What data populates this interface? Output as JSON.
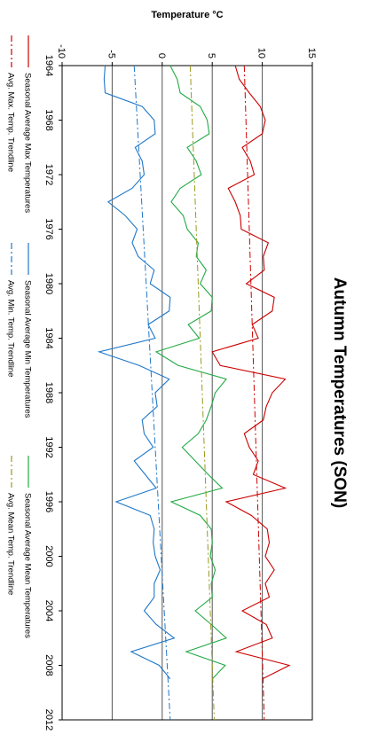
{
  "chart_data": {
    "type": "line",
    "orientation": "rotated-90-clockwise",
    "title": "Autumn Temperatures (SON)",
    "xlabel": "",
    "ylabel": "Temperature °C",
    "xlim": [
      1964,
      2012
    ],
    "ylim": [
      -10,
      15
    ],
    "x_ticks": [
      "1964",
      "1968",
      "1972",
      "1976",
      "1980",
      "1984",
      "1988",
      "1992",
      "1996",
      "2000",
      "2004",
      "2008",
      "2012"
    ],
    "y_ticks": [
      "-10",
      "-5",
      "0",
      "5",
      "10",
      "15"
    ],
    "grid": "horizontal lines at 10, 5, 0, -5",
    "x": [
      1964,
      1965,
      1966,
      1967,
      1968,
      1969,
      1970,
      1971,
      1972,
      1973,
      1974,
      1975,
      1976,
      1977,
      1978,
      1979,
      1980,
      1981,
      1982,
      1983,
      1984,
      1985,
      1986,
      1987,
      1988,
      1989,
      1990,
      1991,
      1992,
      1993,
      1994,
      1995,
      1996,
      1997,
      1998,
      1999,
      2000,
      2001,
      2002,
      2003,
      2004,
      2005,
      2006,
      2007,
      2008,
      2009
    ],
    "series": [
      {
        "name": "Seasonal Average Max Temperatures",
        "color": "#cc0000",
        "style": "solid",
        "values": [
          7.3,
          7.7,
          8.7,
          9.8,
          10.3,
          10.0,
          8.0,
          8.8,
          9.2,
          6.6,
          7.3,
          7.8,
          7.9,
          10.6,
          10.1,
          10.2,
          8.4,
          11.2,
          11.0,
          9.0,
          9.6,
          5.0,
          5.8,
          12.3,
          11.0,
          10.4,
          10.1,
          8.2,
          8.7,
          9.6,
          9.1,
          12.3,
          6.4,
          8.9,
          10.5,
          10.7,
          10.3,
          11.2,
          10.3,
          10.7,
          8.0,
          10.4,
          11.0,
          7.4,
          12.7,
          10.0
        ]
      },
      {
        "name": "Seasonal Average Min Temperatures",
        "color": "#1f77c8",
        "style": "solid",
        "values": [
          -5.7,
          -5.8,
          -5.7,
          -2.0,
          -0.8,
          -0.7,
          -2.7,
          -2.0,
          -1.8,
          -3.0,
          -5.4,
          -3.7,
          -2.5,
          -3.0,
          -2.4,
          -0.8,
          -1.2,
          0.8,
          0.7,
          -1.4,
          -0.7,
          -6.3,
          -2.3,
          0.7,
          -0.7,
          -0.5,
          -2.0,
          -1.8,
          -0.9,
          -2.8,
          -1.7,
          -0.6,
          -4.6,
          -1.2,
          -0.8,
          -0.9,
          -0.7,
          -0.2,
          -0.8,
          -0.8,
          -1.8,
          -0.6,
          1.2,
          -3.1,
          -0.3,
          0.8
        ]
      },
      {
        "name": "Seasonal Average Mean Temperatures",
        "color": "#22aa44",
        "style": "solid",
        "values": [
          0.8,
          1.5,
          1.8,
          3.8,
          4.5,
          4.7,
          2.5,
          3.4,
          3.9,
          1.8,
          0.9,
          2.1,
          2.5,
          3.6,
          3.4,
          4.4,
          3.8,
          5.0,
          4.9,
          2.6,
          3.7,
          -0.6,
          1.6,
          6.4,
          5.3,
          4.9,
          4.4,
          3.6,
          2.0,
          3.3,
          4.6,
          6.0,
          0.9,
          3.8,
          4.9,
          5.0,
          4.8,
          5.3,
          4.9,
          5.0,
          3.3,
          4.9,
          6.4,
          2.4,
          6.3,
          5.0
        ]
      },
      {
        "name": "Avg. Max. Temp. Trendline",
        "color": "#cc0000",
        "style": "dashdot",
        "values_at_xlim": [
          8.2,
          10.2
        ]
      },
      {
        "name": "Avg. Min. Temp. Trendline",
        "color": "#1f77c8",
        "style": "dashdot",
        "values_at_xlim": [
          -2.8,
          0.8
        ]
      },
      {
        "name": "Avg. Mean Temp. Trendline",
        "color": "#99991f",
        "style": "dashdot",
        "values_at_xlim": [
          2.8,
          5.2
        ]
      }
    ],
    "legend_placement": "bottom (right side when rotated)"
  }
}
